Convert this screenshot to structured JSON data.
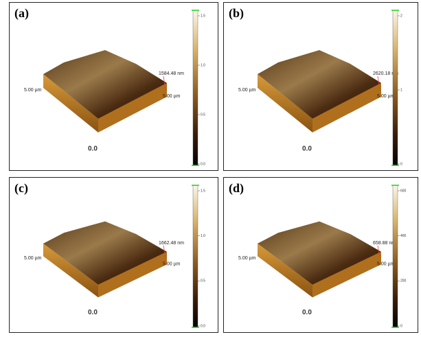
{
  "panels": [
    {
      "label": "(a)",
      "x_label": "5.00 µm",
      "y_label": "5.00 µm",
      "height": "1584.48 nm",
      "origin": "0.0",
      "colorbar_ticks": [
        "1.5",
        "1.0",
        "0.5",
        "0.0"
      ]
    },
    {
      "label": "(b)",
      "x_label": "5.00 µm",
      "y_label": "5.00 µm",
      "height": "2620.18 nm",
      "origin": "0.0",
      "colorbar_ticks": [
        "2",
        "1",
        "0"
      ]
    },
    {
      "label": "(c)",
      "x_label": "5.00 µm",
      "y_label": "5.00 µm",
      "height": "1662.48 nm",
      "origin": "0.0",
      "colorbar_ticks": [
        "1.5",
        "1.0",
        "0.5",
        "0.0"
      ]
    },
    {
      "label": "(d)",
      "x_label": "5.00 µm",
      "y_label": "5.00 µm",
      "height": "658.88 nm",
      "origin": "0.0",
      "colorbar_ticks": [
        "600",
        "400",
        "200",
        "0"
      ]
    }
  ]
}
